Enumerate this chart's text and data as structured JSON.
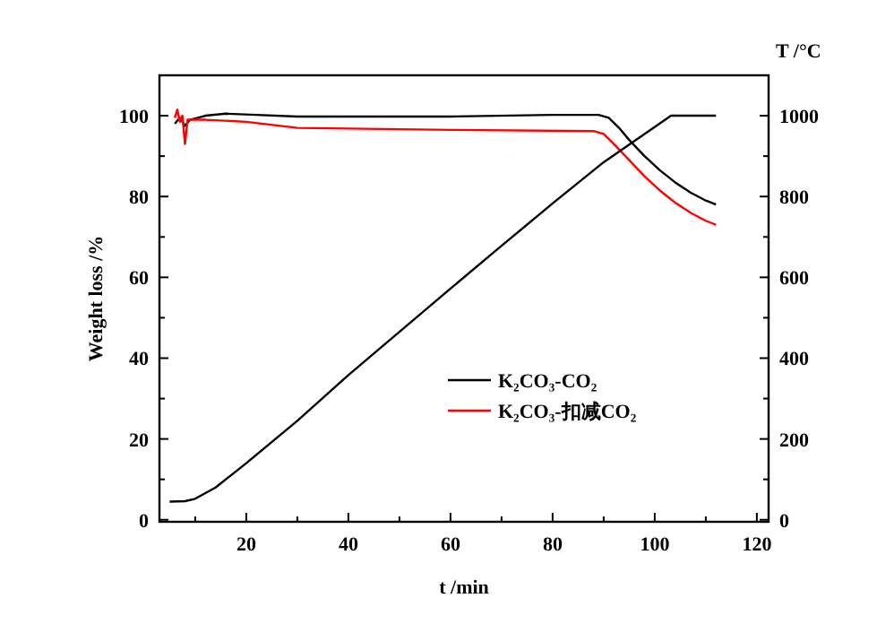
{
  "chart_data": {
    "type": "line",
    "xlabel": "t /min",
    "ylabel": "Weight loss /%",
    "y2label": "T /°C",
    "xlim": [
      3,
      122.3
    ],
    "xticks": [
      {
        "value": 10,
        "label": null
      },
      20,
      {
        "value": 30,
        "label": null
      },
      40,
      {
        "value": 50,
        "label": null
      },
      60,
      {
        "value": 70,
        "label": null
      },
      80,
      {
        "value": 90,
        "label": null
      },
      100,
      {
        "value": 110,
        "label": null
      },
      120
    ],
    "ylim": [
      -0.5,
      110
    ],
    "yticks": [
      0,
      {
        "value": 10,
        "label": null
      },
      20,
      {
        "value": 30,
        "label": null
      },
      40,
      {
        "value": 50,
        "label": null
      },
      60,
      {
        "value": 70,
        "label": null
      },
      80,
      {
        "value": 90,
        "label": null
      },
      100
    ],
    "y2lim": [
      -5,
      1100
    ],
    "y2ticks": [
      0,
      {
        "value": 100,
        "label": null
      },
      200,
      {
        "value": 300,
        "label": null
      },
      400,
      {
        "value": 500,
        "label": null
      },
      600,
      {
        "value": 700,
        "label": null
      },
      800,
      {
        "value": 900,
        "label": null
      },
      1000
    ],
    "legend": "right",
    "grid": false,
    "line_style": "solid",
    "marker": "none",
    "series": [
      {
        "name": "K₂CO₃-CO₂",
        "color": "#000000",
        "x": [
          6,
          7,
          8,
          9,
          12,
          16,
          22,
          30,
          60,
          80,
          89,
          91,
          93,
          95,
          98,
          101,
          104,
          107,
          110,
          112
        ],
        "values": [
          98,
          99.5,
          97.5,
          99,
          100,
          100.5,
          100.2,
          99.8,
          99.8,
          100.2,
          100.2,
          99.5,
          97,
          94,
          90,
          86.5,
          83.5,
          81,
          79,
          78
        ]
      },
      {
        "name": "K₂CO₃-扣减CO₂",
        "color": "#ff0000",
        "x": [
          6,
          6.5,
          7,
          7.5,
          8,
          8.5,
          12,
          20,
          30,
          60,
          88,
          90,
          92,
          95,
          98,
          101,
          104,
          107,
          110,
          112
        ],
        "values": [
          99.5,
          101.5,
          98.5,
          100,
          93,
          99,
          99,
          98.5,
          97,
          96.5,
          96.2,
          95.5,
          93,
          89,
          85,
          81.5,
          78.5,
          76,
          74,
          73
        ]
      },
      {
        "color": "#000000",
        "axis": "y2",
        "x": [
          5,
          8,
          10,
          14,
          20,
          30,
          40,
          50,
          60,
          70,
          80,
          90,
          103.2,
          112
        ],
        "values": [
          45,
          46,
          52,
          80,
          140,
          245,
          358,
          465,
          572,
          678,
          783,
          885,
          1000,
          1000
        ]
      }
    ]
  }
}
